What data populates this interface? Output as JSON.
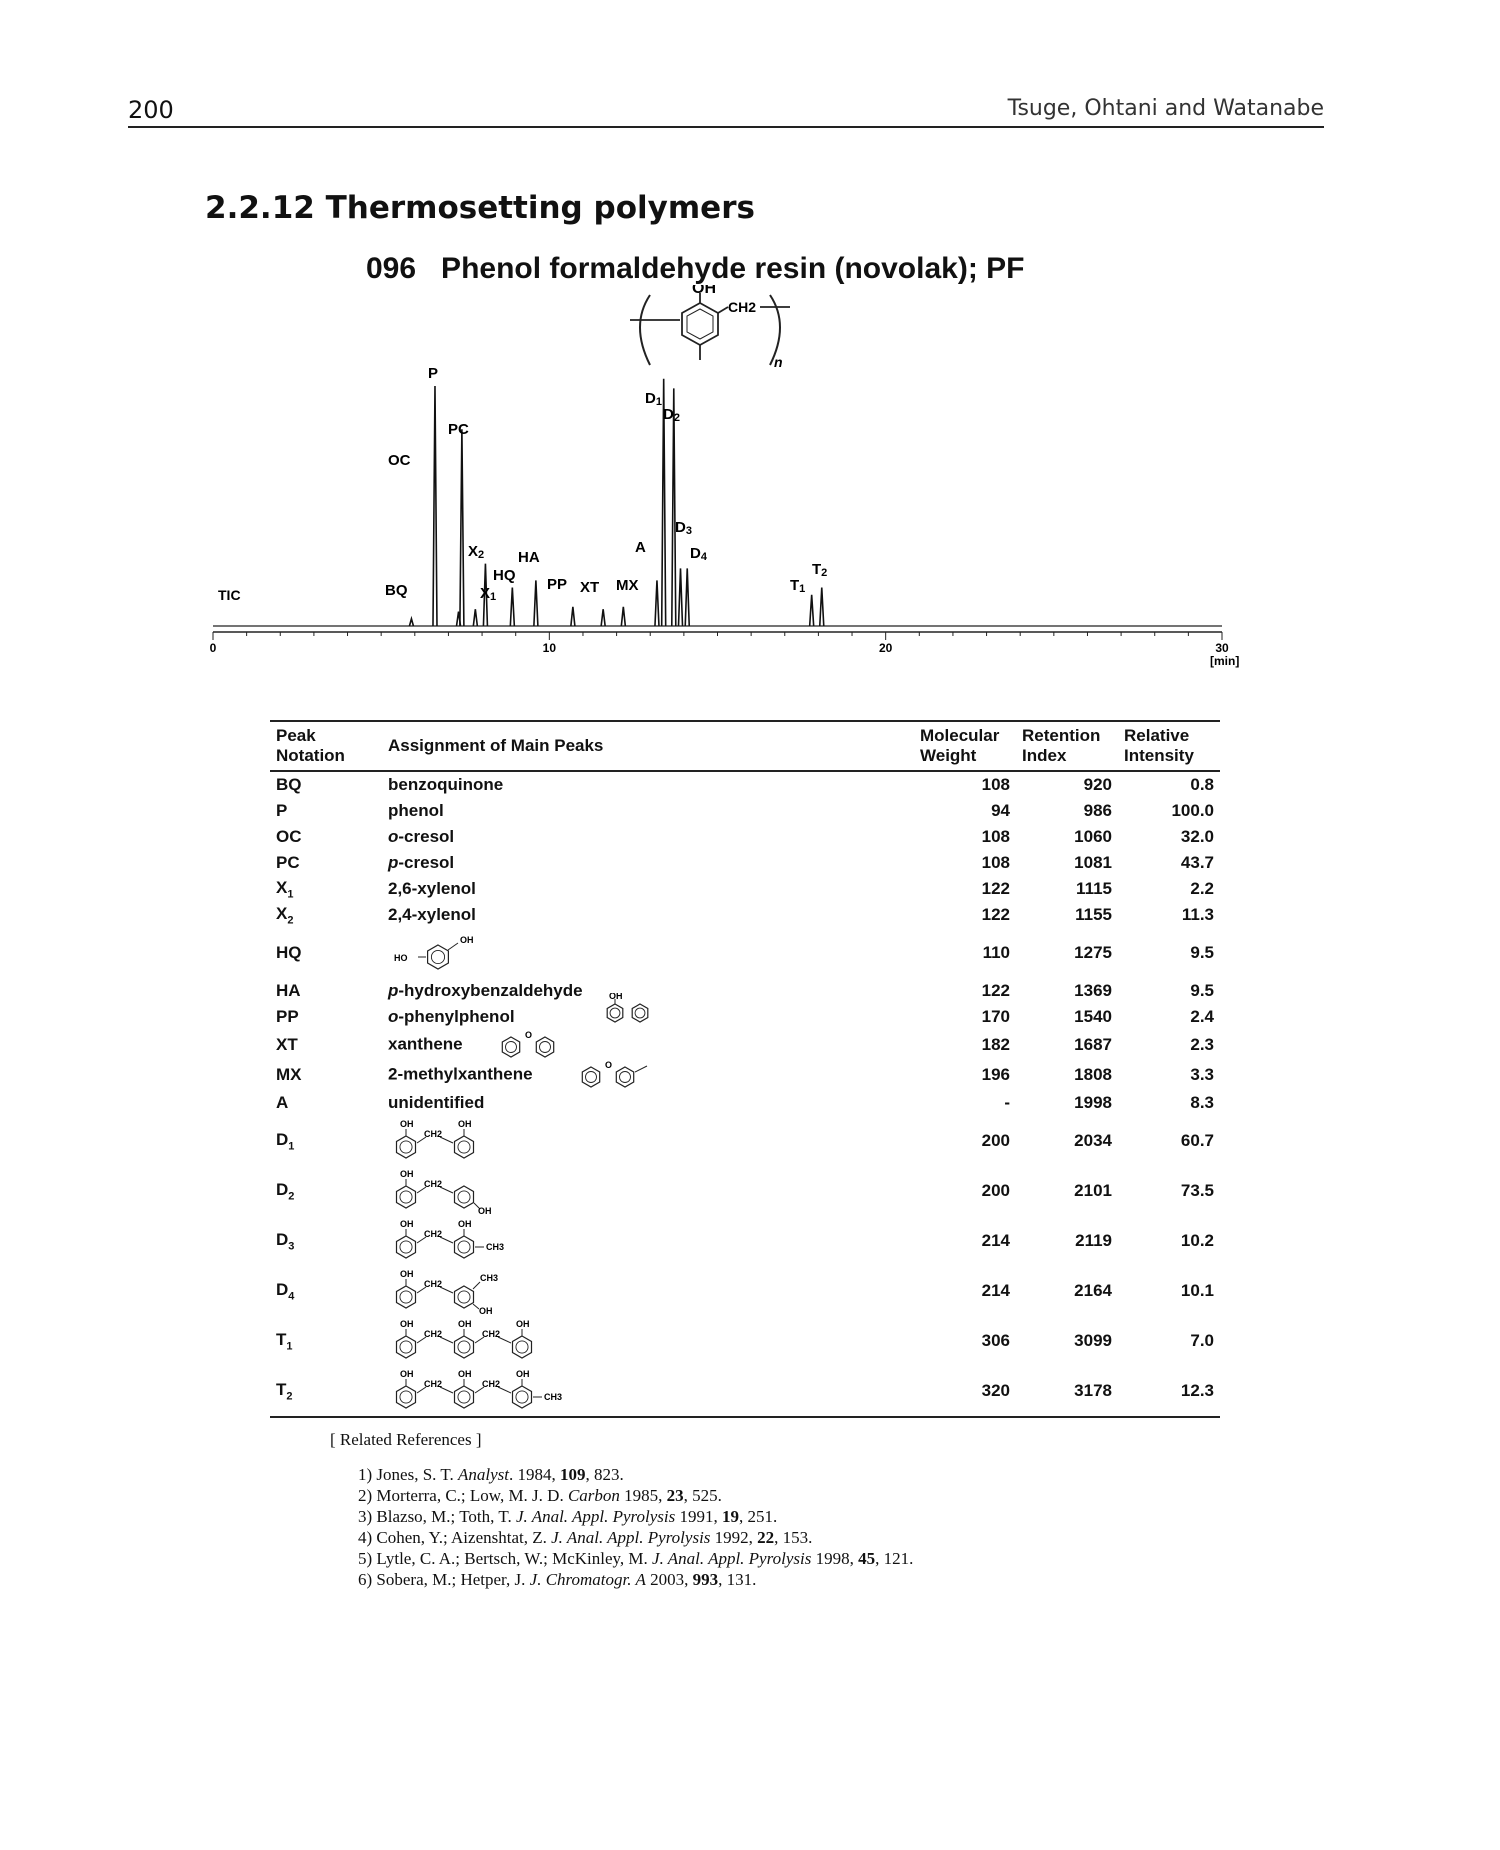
{
  "header": {
    "page_number": "200",
    "running_head": "Tsuge, Ohtani and Watanabe"
  },
  "section_title": "2.2.12 Thermosetting polymers",
  "compound_title": "096   Phenol formaldehyde resin (novolak); PF",
  "structure": {
    "oh": "OH",
    "ch2": "CH2",
    "n": "n"
  },
  "chart_data": {
    "type": "line",
    "trace_label": "TIC",
    "x_ticks": [
      "0",
      "10",
      "20",
      "30"
    ],
    "x_unit": "[min]",
    "xlim": [
      0,
      30
    ],
    "peaks": [
      {
        "label": "BQ",
        "t": 5.9,
        "h": 3
      },
      {
        "label": "P",
        "t": 6.6,
        "h": 100
      },
      {
        "label": "OC",
        "t": 7.3,
        "h": 6
      },
      {
        "label": "PC",
        "t": 7.4,
        "h": 82
      },
      {
        "label": "X1",
        "t": 7.8,
        "h": 7
      },
      {
        "label": "X2",
        "t": 8.1,
        "h": 26
      },
      {
        "label": "HQ",
        "t": 8.9,
        "h": 16
      },
      {
        "label": "HA",
        "t": 9.6,
        "h": 19
      },
      {
        "label": "PP",
        "t": 10.7,
        "h": 8
      },
      {
        "label": "XT",
        "t": 11.6,
        "h": 7
      },
      {
        "label": "MX",
        "t": 12.2,
        "h": 8
      },
      {
        "label": "A",
        "t": 13.2,
        "h": 19
      },
      {
        "label": "D1",
        "t": 13.4,
        "h": 103
      },
      {
        "label": "D2",
        "t": 13.7,
        "h": 99
      },
      {
        "label": "D3",
        "t": 13.9,
        "h": 24
      },
      {
        "label": "D4",
        "t": 14.1,
        "h": 24
      },
      {
        "label": "T1",
        "t": 17.8,
        "h": 13
      },
      {
        "label": "T2",
        "t": 18.1,
        "h": 16
      }
    ]
  },
  "table": {
    "headers": {
      "peak": [
        "Peak",
        "Notation"
      ],
      "assignment": "Assignment of Main Peaks",
      "mw": [
        "Molecular",
        "Weight"
      ],
      "ri": [
        "Retention",
        "Index"
      ],
      "ri_int": [
        "Relative",
        "Intensity"
      ]
    },
    "rows": [
      {
        "peak": "BQ",
        "assign": "benzoquinone",
        "mw": "108",
        "ri": "920",
        "int": "0.8"
      },
      {
        "peak": "P",
        "assign": "phenol",
        "mw": "94",
        "ri": "986",
        "int": "100.0"
      },
      {
        "peak": "OC",
        "assign_prefix": "o",
        "assign_rest": "-cresol",
        "mw": "108",
        "ri": "1060",
        "int": "32.0"
      },
      {
        "peak": "PC",
        "assign_prefix": "p",
        "assign_rest": "-cresol",
        "mw": "108",
        "ri": "1081",
        "int": "43.7"
      },
      {
        "peak": "X",
        "sub": "1",
        "assign": "2,6-xylenol",
        "mw": "122",
        "ri": "1115",
        "int": "2.2"
      },
      {
        "peak": "X",
        "sub": "2",
        "assign": "2,4-xylenol",
        "mw": "122",
        "ri": "1155",
        "int": "11.3"
      },
      {
        "peak": "HQ",
        "struct_ho": "HO",
        "struct_oh": "OH",
        "mw": "110",
        "ri": "1275",
        "int": "9.5"
      },
      {
        "peak": "HA",
        "assign_prefix": "p",
        "assign_rest": "-hydroxybenzaldehyde",
        "mw": "122",
        "ri": "1369",
        "int": "9.5"
      },
      {
        "peak": "PP",
        "assign_prefix": "o",
        "assign_rest": "-phenylphenol",
        "struct_oh": "OH",
        "mw": "170",
        "ri": "1540",
        "int": "2.4"
      },
      {
        "peak": "XT",
        "assign": "xanthene",
        "struct_o": "O",
        "mw": "182",
        "ri": "1687",
        "int": "2.3"
      },
      {
        "peak": "MX",
        "assign": "2-methylxanthene",
        "struct_o": "O",
        "mw": "196",
        "ri": "1808",
        "int": "3.3"
      },
      {
        "peak": "A",
        "assign": "unidentified",
        "mw": "-",
        "ri": "1998",
        "int": "8.3"
      },
      {
        "peak": "D",
        "sub": "1",
        "s": [
          "OH",
          "CH2",
          "OH"
        ],
        "mw": "200",
        "ri": "2034",
        "int": "60.7"
      },
      {
        "peak": "D",
        "sub": "2",
        "s": [
          "OH",
          "CH2",
          "OH"
        ],
        "mw": "200",
        "ri": "2101",
        "int": "73.5"
      },
      {
        "peak": "D",
        "sub": "3",
        "s": [
          "OH",
          "CH2",
          "OH",
          "CH3"
        ],
        "mw": "214",
        "ri": "2119",
        "int": "10.2"
      },
      {
        "peak": "D",
        "sub": "4",
        "s": [
          "OH",
          "CH2",
          "CH3",
          "OH"
        ],
        "mw": "214",
        "ri": "2164",
        "int": "10.1"
      },
      {
        "peak": "T",
        "sub": "1",
        "s": [
          "OH",
          "CH2",
          "OH",
          "CH2",
          "OH"
        ],
        "mw": "306",
        "ri": "3099",
        "int": "7.0"
      },
      {
        "peak": "T",
        "sub": "2",
        "s": [
          "OH",
          "CH2",
          "OH",
          "CH2",
          "OH",
          "CH3"
        ],
        "mw": "320",
        "ri": "3178",
        "int": "12.3"
      }
    ]
  },
  "references": {
    "heading": "[ Related References ]",
    "items": [
      {
        "pre": "1) Jones, S. T. ",
        "journal": "Analyst",
        "mid": ". 1984, ",
        "vol": "109",
        "post": ", 823."
      },
      {
        "pre": "2) Morterra, C.; Low, M. J. D. ",
        "journal": "Carbon",
        "mid": " 1985, ",
        "vol": "23",
        "post": ", 525."
      },
      {
        "pre": "3) Blazso, M.; Toth, T. ",
        "journal": "J. Anal. Appl. Pyrolysis",
        "mid": " 1991, ",
        "vol": "19",
        "post": ", 251."
      },
      {
        "pre": "4) Cohen, Y.; Aizenshtat, Z. ",
        "journal": "J. Anal. Appl. Pyrolysis",
        "mid": " 1992, ",
        "vol": "22",
        "post": ", 153."
      },
      {
        "pre": "5) Lytle, C. A.; Bertsch, W.; McKinley, M. ",
        "journal": "J. Anal. Appl. Pyrolysis",
        "mid": " 1998, ",
        "vol": "45",
        "post": ", 121."
      },
      {
        "pre": "6) Sobera, M.; Hetper, J. ",
        "journal": "J. Chromatogr. A",
        "mid": " 2003, ",
        "vol": "993",
        "post": ", 131."
      }
    ]
  }
}
